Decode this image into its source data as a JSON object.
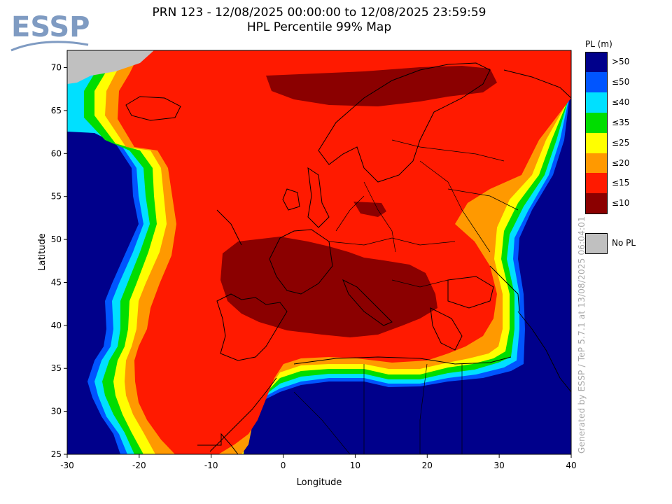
{
  "logo": {
    "text": "ESSP"
  },
  "header": {
    "title_line1": "PRN 123 - 12/08/2025 00:00:00 to 12/08/2025 23:59:59",
    "title_line2": "HPL Percentile 99% Map"
  },
  "axes": {
    "xlabel": "Longitude",
    "ylabel": "Latitude",
    "x_ticks": [
      "-30",
      "-20",
      "-10",
      "0",
      "10",
      "20",
      "30",
      "40"
    ],
    "y_ticks": [
      "25",
      "30",
      "35",
      "40",
      "45",
      "50",
      "55",
      "60",
      "65",
      "70"
    ],
    "xlim": [
      -30,
      40
    ],
    "ylim": [
      25,
      72
    ]
  },
  "legend": {
    "title": "PL (m)",
    "items": [
      {
        "label": ">50",
        "color": "#00008b"
      },
      {
        "label": "≤50",
        "color": "#0055ff"
      },
      {
        "label": "≤40",
        "color": "#00e0ff"
      },
      {
        "label": "≤35",
        "color": "#00dd00"
      },
      {
        "label": "≤25",
        "color": "#ffff00"
      },
      {
        "label": "≤20",
        "color": "#ff9900"
      },
      {
        "label": "≤15",
        "color": "#ff1a00"
      },
      {
        "label": "≤10",
        "color": "#8b0000"
      }
    ],
    "no_pl": {
      "label": "No PL",
      "color": "#c0c0c0"
    }
  },
  "generated_text": "Generated by ESSP / TeP 5.7.1 at 13/08/2025 06:04:01",
  "colors": {
    "brand": "#7f9bc2",
    "land_border": "#000000"
  }
}
